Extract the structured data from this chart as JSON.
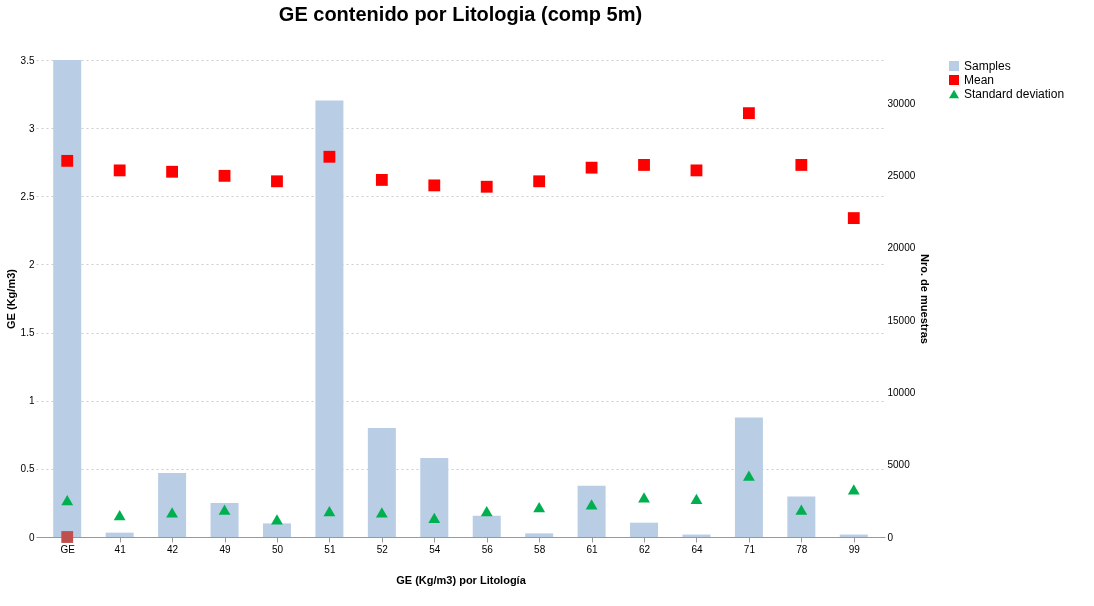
{
  "chart_data": {
    "type": "bar",
    "title": "GE  contenido por  Litologia (comp 5m)",
    "xlabel": "GE  (Kg/m3) por Litología",
    "ylabel": "GE    (Kg/m3)",
    "y2label": "Nro. de muestras",
    "categories": [
      "GE",
      "41",
      "42",
      "49",
      "50",
      "51",
      "52",
      "54",
      "56",
      "58",
      "61",
      "62",
      "64",
      "71",
      "78",
      "99"
    ],
    "series": [
      {
        "name": "Samples",
        "axis": "y2",
        "color": "#b9cde5",
        "values": [
          33000,
          300,
          4430,
          2360,
          940,
          30200,
          7540,
          5470,
          1470,
          250,
          3540,
          990,
          170,
          8270,
          2800,
          170
        ]
      },
      {
        "name": "Mean",
        "type": "scatter",
        "marker": "square",
        "color": "#ff0000",
        "values": [
          2.76,
          2.69,
          2.68,
          2.65,
          2.61,
          2.79,
          2.62,
          2.58,
          2.57,
          2.61,
          2.71,
          2.73,
          2.69,
          3.11,
          2.73,
          2.34
        ]
      },
      {
        "name": "Standard deviation",
        "type": "scatter",
        "marker": "triangle",
        "color": "#00b050",
        "values": [
          0.27,
          0.16,
          0.18,
          0.2,
          0.13,
          0.19,
          0.18,
          0.14,
          0.19,
          0.22,
          0.24,
          0.29,
          0.28,
          0.45,
          0.2,
          0.35
        ]
      },
      {
        "type": "scatter",
        "marker": "square",
        "color": "#c0504d",
        "values": [
          0,
          null,
          null,
          null,
          null,
          null,
          null,
          null,
          null,
          null,
          null,
          null,
          null,
          null,
          null,
          null
        ]
      }
    ],
    "ylim": [
      0,
      3.5
    ],
    "yticks": [
      0,
      0.5,
      1,
      1.5,
      2,
      2.5,
      3,
      3.5
    ],
    "y2lim": [
      0,
      33000
    ],
    "y2ticks": [
      0,
      5000,
      10000,
      15000,
      20000,
      25000,
      30000
    ],
    "grid": "y",
    "legend": "right"
  }
}
